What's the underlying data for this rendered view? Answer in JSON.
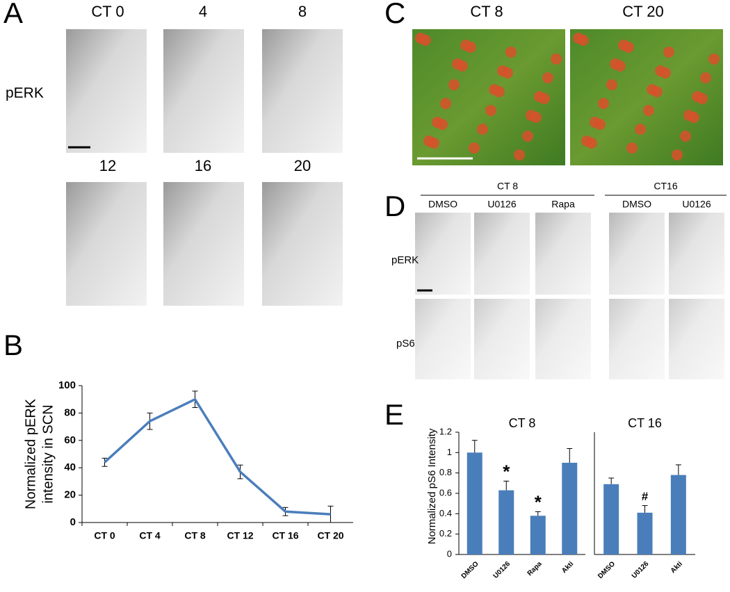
{
  "panels": {
    "A": {
      "label": "A",
      "row_label": "pERK",
      "images": [
        "CT 0",
        "4",
        "8",
        "12",
        "16",
        "20"
      ]
    },
    "C": {
      "label": "C",
      "images": [
        "CT 8",
        "CT 20"
      ]
    },
    "D": {
      "label": "D",
      "groups": [
        {
          "name": "CT 8",
          "conditions": [
            "DMSO",
            "U0126",
            "Rapa"
          ]
        },
        {
          "name": "CT16",
          "conditions": [
            "DMSO",
            "U0126"
          ]
        }
      ],
      "rows": [
        "pERK",
        "pS6"
      ]
    }
  },
  "chart_data": [
    {
      "type": "line",
      "panel": "B",
      "y_label": [
        "Normalized pERK",
        "intensity in SCN"
      ],
      "categories": [
        "CT 0",
        "CT 4",
        "CT 8",
        "CT 12",
        "CT 16",
        "CT 20"
      ],
      "values": [
        44,
        74,
        90,
        37,
        8,
        6
      ],
      "errors": [
        3,
        6,
        6,
        5,
        3,
        6
      ],
      "color": "#4a7ebb",
      "ylim": [
        0,
        100
      ],
      "yticks": [
        0,
        20,
        40,
        60,
        80,
        100
      ]
    },
    {
      "type": "bar",
      "panel": "E",
      "y_label": "Normalized pS6 Intensity",
      "color": "#4a7ebb",
      "ylim": [
        0,
        1.2
      ],
      "yticks": [
        0,
        0.2,
        0.4,
        0.6,
        0.8,
        1,
        1.2
      ],
      "groups": [
        {
          "title": "CT 8",
          "categories": [
            "DMSO",
            "U0126",
            "Rapa",
            "Akti"
          ],
          "values": [
            1,
            0.63,
            0.38,
            0.9
          ],
          "errors": [
            0.12,
            0.09,
            0.04,
            0.14
          ],
          "annotations": [
            {
              "index": 1,
              "text": "*"
            },
            {
              "index": 2,
              "text": "*"
            }
          ]
        },
        {
          "title": "CT 16",
          "categories": [
            "DMSO",
            "U0126",
            "Akti"
          ],
          "values": [
            0.69,
            0.41,
            0.78
          ],
          "errors": [
            0.06,
            0.07,
            0.1
          ],
          "annotations": [
            {
              "index": 1,
              "text": "#"
            }
          ]
        }
      ]
    }
  ]
}
